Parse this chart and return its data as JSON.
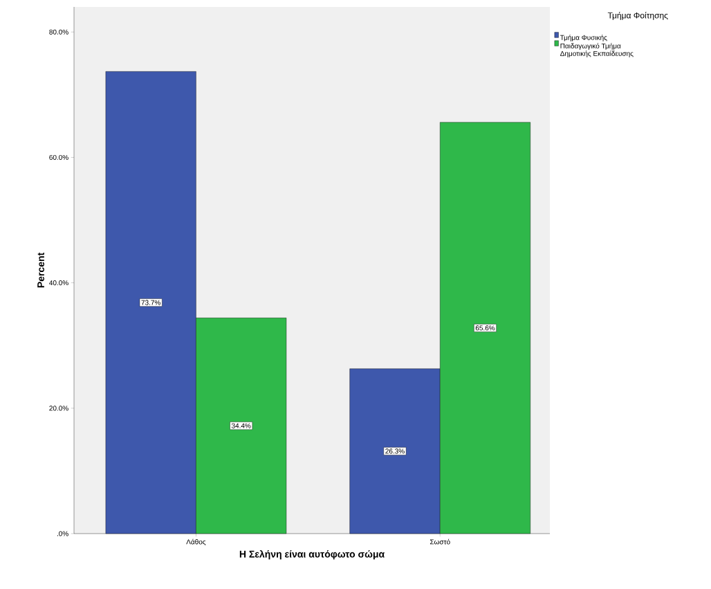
{
  "chart_data": {
    "type": "bar",
    "xlabel": "Η Σελήνη είναι αυτόφωτο σώμα",
    "ylabel": "Percent",
    "legend_title": "Τμήμα Φοίτησης",
    "categories": [
      "Λάθος",
      "Σωστό"
    ],
    "series": [
      {
        "name": "Τμήμα Φυσικής",
        "color": "#3e58ac",
        "values": [
          73.7,
          26.3
        ],
        "value_labels": [
          "73.7%",
          "26.3%"
        ]
      },
      {
        "name": "Παιδαγωγικό Τμήμα Δημοτικής Εκπαίδευσης",
        "color": "#2fb84a",
        "values": [
          34.4,
          65.6
        ],
        "value_labels": [
          "34.4%",
          "65.6%"
        ]
      }
    ],
    "ylim": [
      0,
      84
    ],
    "yticks": [
      {
        "value": 0,
        "label": ".0%"
      },
      {
        "value": 20,
        "label": "20.0%"
      },
      {
        "value": 40,
        "label": "40.0%"
      },
      {
        "value": 60,
        "label": "60.0%"
      },
      {
        "value": 80,
        "label": "80.0%"
      }
    ],
    "grid": false,
    "legend": "top right"
  }
}
